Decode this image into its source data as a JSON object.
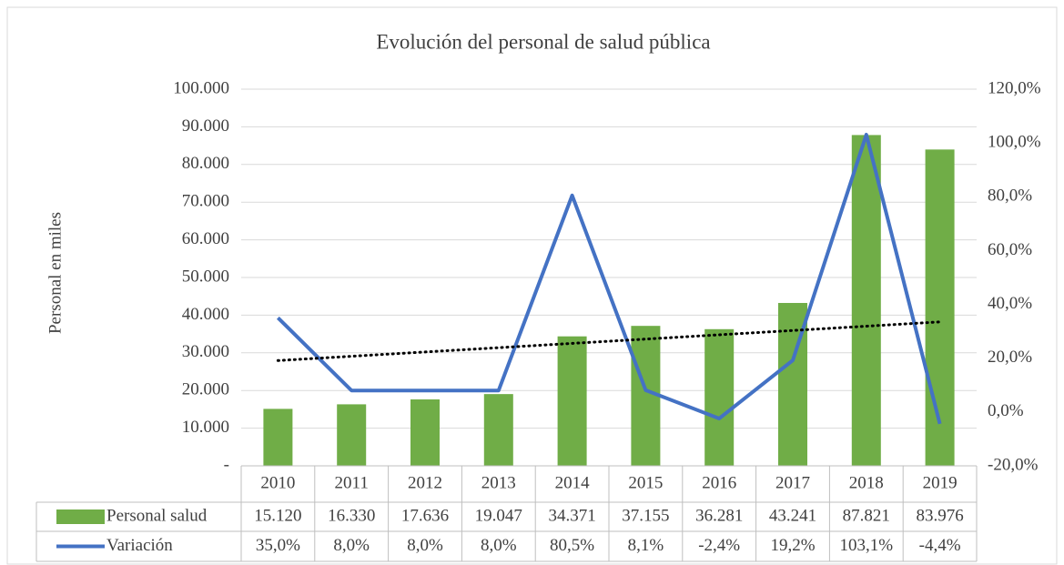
{
  "chart_data": {
    "type": "bar_line",
    "title": "Evolución del personal de salud pública",
    "y_label": "Personal en miles",
    "categories": [
      "2010",
      "2011",
      "2012",
      "2013",
      "2014",
      "2015",
      "2016",
      "2017",
      "2018",
      "2019"
    ],
    "series": [
      {
        "name": "Personal salud",
        "type": "bar",
        "color": "#70ad47",
        "values": [
          15120,
          16330,
          17636,
          19047,
          34371,
          37155,
          36281,
          43241,
          87821,
          83976
        ],
        "value_labels": [
          "15.120",
          "16.330",
          "17.636",
          "19.047",
          "34.371",
          "37.155",
          "36.281",
          "43.241",
          "87.821",
          "83.976"
        ]
      },
      {
        "name": "Variación",
        "type": "line",
        "axis": "y2",
        "color": "#4472c4",
        "trendline": "linear",
        "values": [
          35.0,
          8.0,
          8.0,
          8.0,
          80.5,
          8.1,
          -2.4,
          19.2,
          103.1,
          -4.4
        ],
        "value_labels": [
          "35,0%",
          "8,0%",
          "8,0%",
          "8,0%",
          "80,5%",
          "8,1%",
          "-2,4%",
          "19,2%",
          "103,1%",
          "-4,4%"
        ]
      }
    ],
    "ylim": [
      0,
      100000
    ],
    "yticks": [
      {
        "value": 0,
        "label": "-"
      },
      {
        "value": 10000,
        "label": "10.000"
      },
      {
        "value": 20000,
        "label": "20.000"
      },
      {
        "value": 30000,
        "label": "30.000"
      },
      {
        "value": 40000,
        "label": "40.000"
      },
      {
        "value": 50000,
        "label": "50.000"
      },
      {
        "value": 60000,
        "label": "60.000"
      },
      {
        "value": 70000,
        "label": "70.000"
      },
      {
        "value": 80000,
        "label": "80.000"
      },
      {
        "value": 90000,
        "label": "90.000"
      },
      {
        "value": 100000,
        "label": "100.000"
      }
    ],
    "y2lim": [
      -20,
      120
    ],
    "y2ticks": [
      {
        "value": -20,
        "label": "-20,0%"
      },
      {
        "value": 0,
        "label": "0,0%"
      },
      {
        "value": 20,
        "label": "20,0%"
      },
      {
        "value": 40,
        "label": "40,0%"
      },
      {
        "value": 60,
        "label": "60,0%"
      },
      {
        "value": 80,
        "label": "80,0%"
      },
      {
        "value": 100,
        "label": "100,0%"
      },
      {
        "value": 120,
        "label": "120,0%"
      }
    ],
    "grid": true,
    "data_table": true
  }
}
